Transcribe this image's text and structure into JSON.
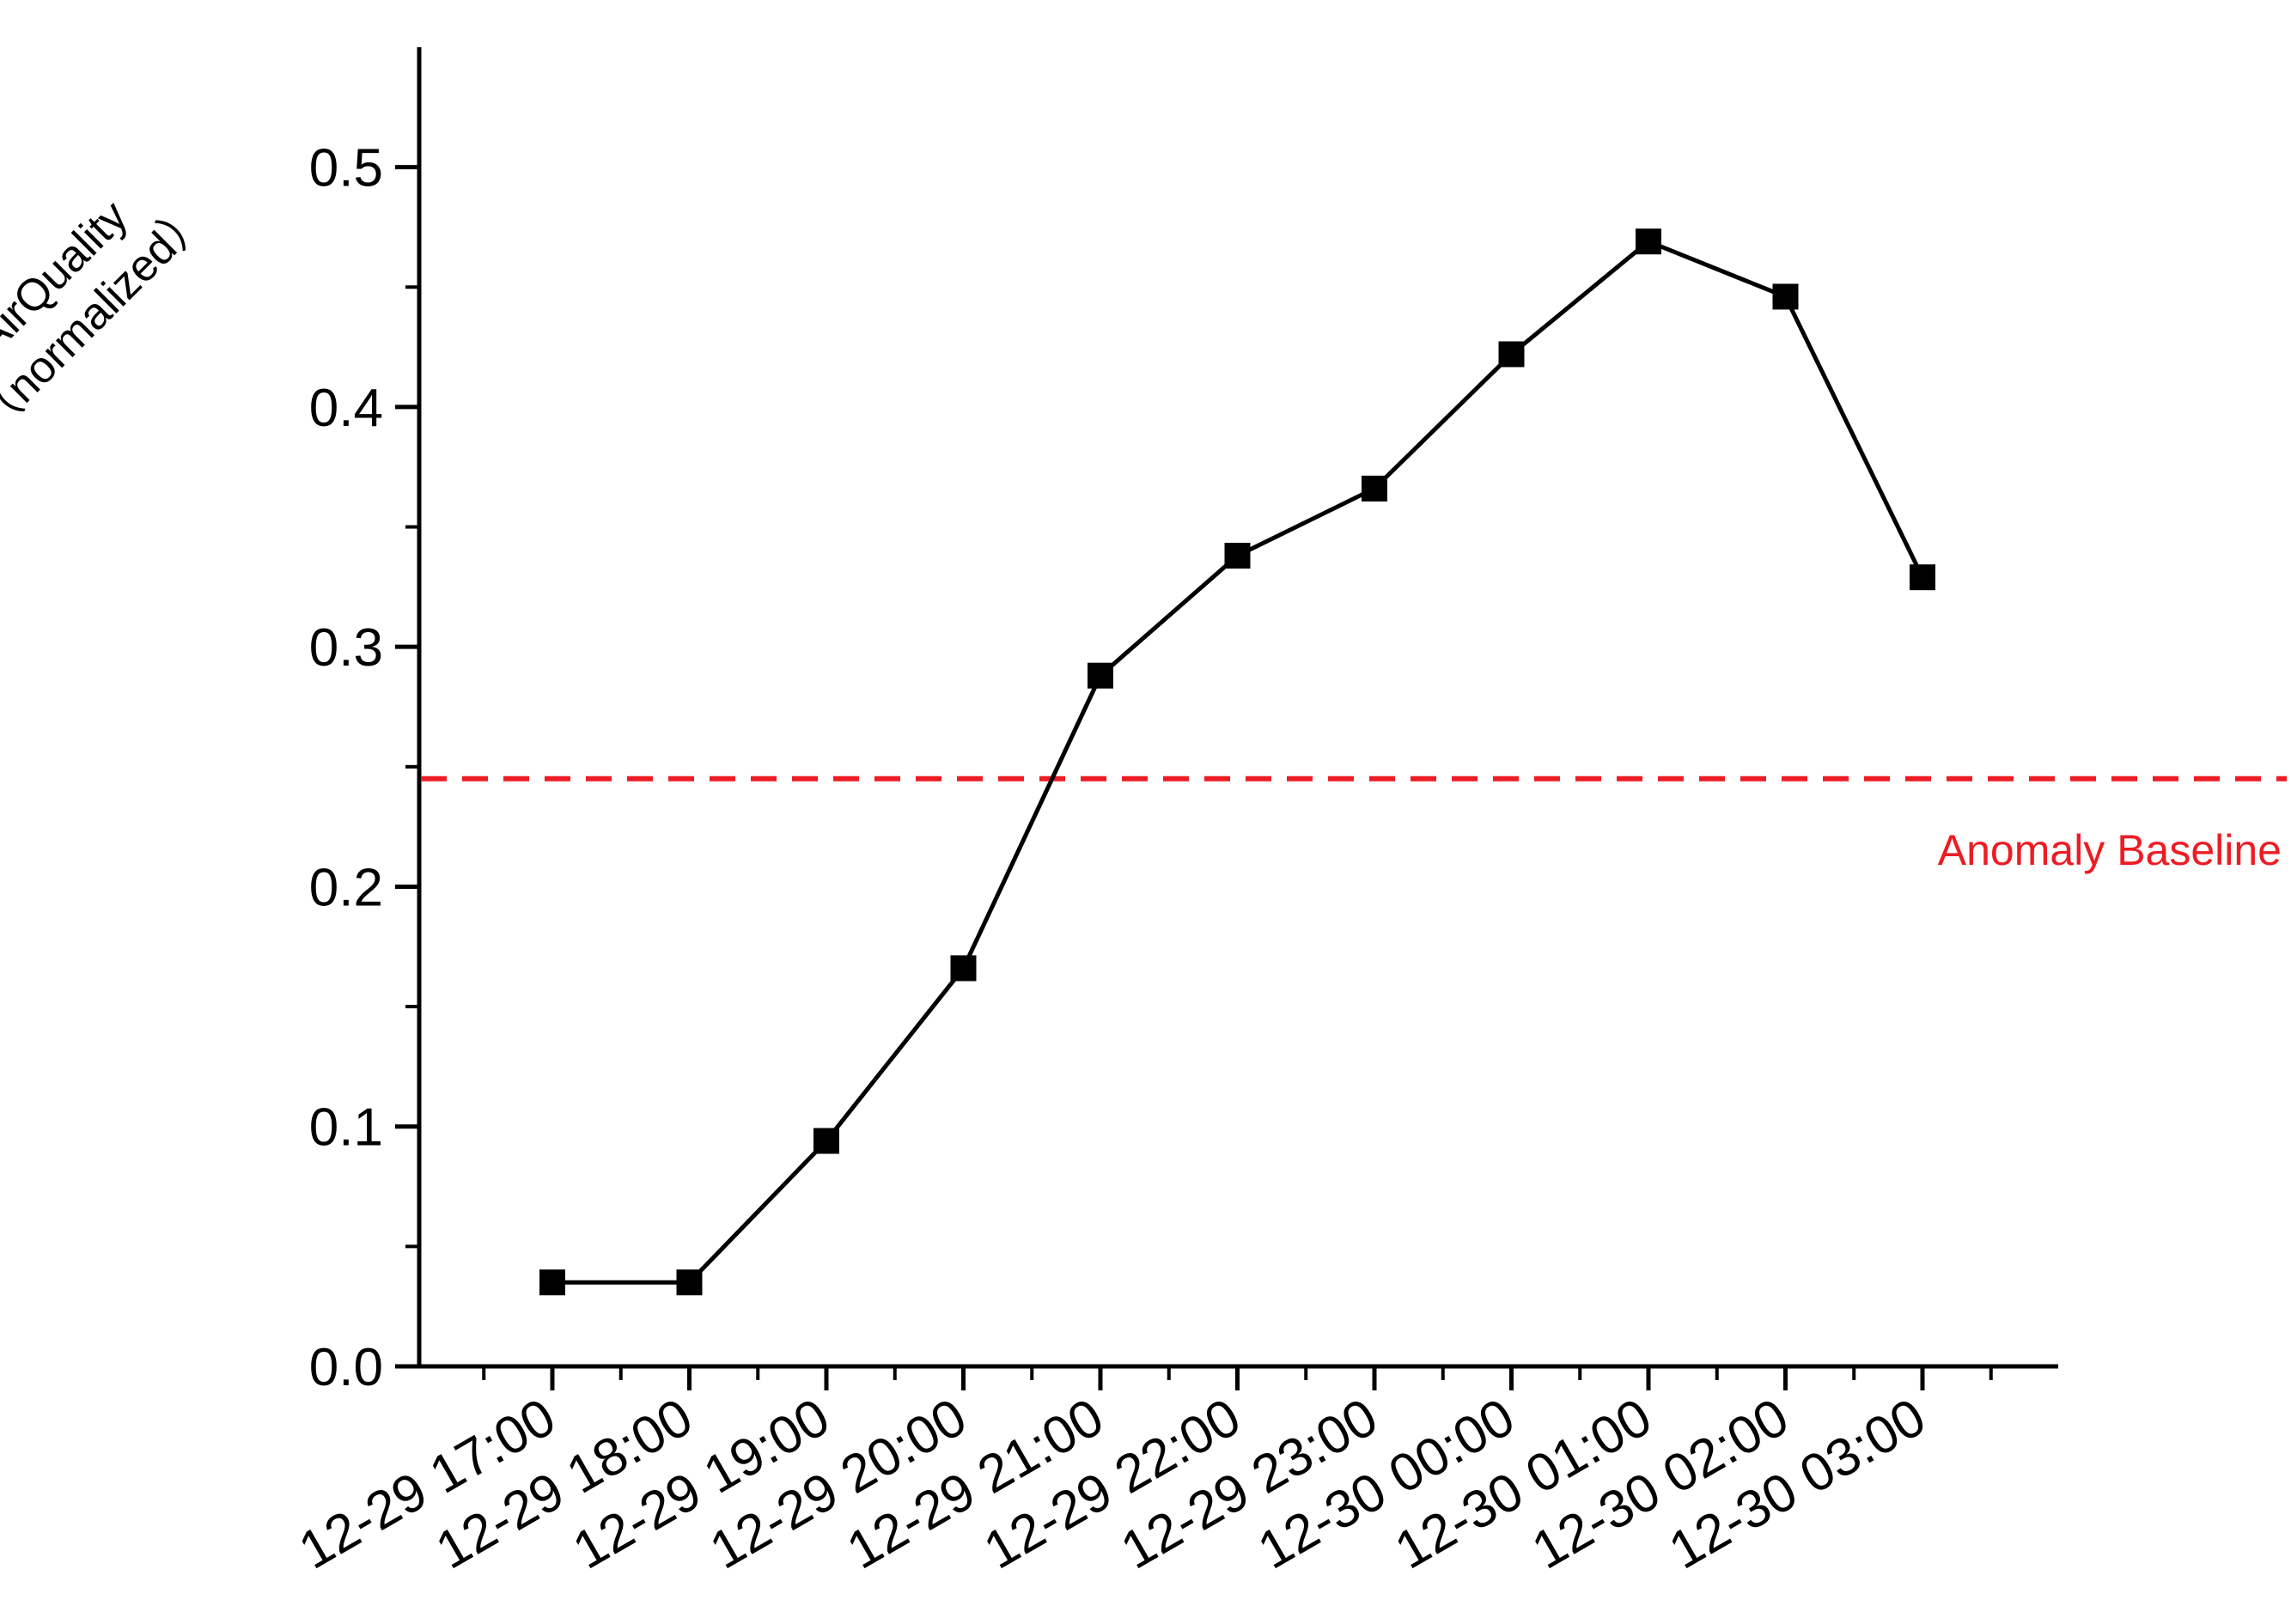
{
  "chart_data": {
    "type": "line",
    "title": "",
    "xlabel": "",
    "ylabel_lines": [
      "AirQuality",
      "（normalized）"
    ],
    "categories": [
      "12-29 17:00",
      "12-29 18:00",
      "12-29 19:00",
      "12-29 20:00",
      "12-29 21:00",
      "12-29 22:00",
      "12-29 23:00",
      "12-30 00:00",
      "12-30 01:00",
      "12-30 02:00",
      "12-30 03:00"
    ],
    "series": [
      {
        "values": [
          0.035,
          0.035,
          0.094,
          0.166,
          0.288,
          0.338,
          0.366,
          0.422,
          0.469,
          0.446,
          0.329
        ],
        "color": "#000000",
        "marker": "square"
      }
    ],
    "y_ticks": [
      "0.0",
      "0.1",
      "0.2",
      "0.3",
      "0.4",
      "0.5"
    ],
    "ylim": [
      0,
      0.55
    ],
    "grid": false,
    "reference_line": {
      "label": "Anomaly Baseline",
      "value": 0.245,
      "color": "#ed1c24",
      "style": "dashed"
    }
  }
}
